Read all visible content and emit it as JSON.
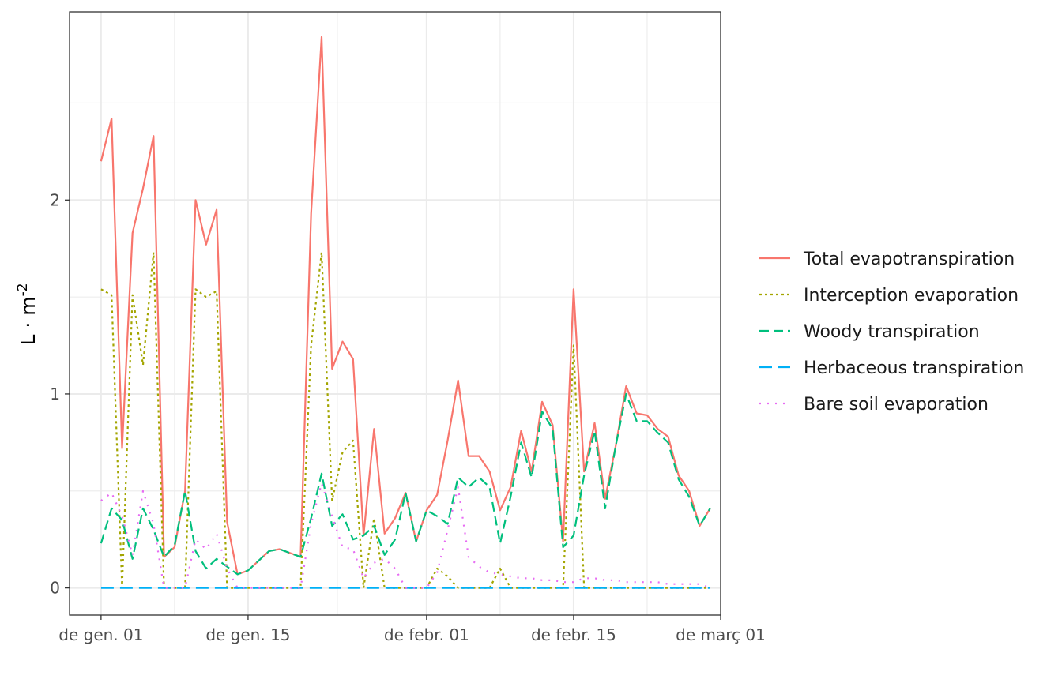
{
  "chart_data": {
    "type": "line",
    "title": "",
    "xlabel": "",
    "ylabel": "L · m",
    "ylabel_superscript": "-2",
    "x_start": "2021-01-01",
    "x_ticks": [
      "de gen. 01",
      "de gen. 15",
      "de febr. 01",
      "de febr. 15",
      "de març 01"
    ],
    "x_tick_dates": [
      "2021-01-01",
      "2021-01-15",
      "2021-02-01",
      "2021-02-15",
      "2021-03-01"
    ],
    "xlim": [
      "2020-12-29",
      "2021-03-01"
    ],
    "y_ticks": [
      "0",
      "1",
      "2"
    ],
    "ylim": [
      -0.14,
      2.97
    ],
    "grid": true,
    "legend_position": "right",
    "series": [
      {
        "name": "Total evapotranspiration",
        "color": "#F8766D",
        "dash": "solid",
        "values": [
          2.2,
          2.42,
          0.72,
          1.83,
          2.06,
          2.33,
          0.16,
          0.21,
          0.5,
          2.0,
          1.77,
          1.95,
          0.34,
          0.07,
          0.09,
          0.14,
          0.19,
          0.2,
          0.18,
          0.16,
          1.93,
          2.84,
          1.13,
          1.27,
          1.18,
          0.27,
          0.82,
          0.28,
          0.36,
          0.49,
          0.24,
          0.4,
          0.48,
          0.76,
          1.07,
          0.68,
          0.68,
          0.6,
          0.4,
          0.52,
          0.81,
          0.6,
          0.96,
          0.84,
          0.24,
          1.54,
          0.6,
          0.85,
          0.46,
          0.73,
          1.04,
          0.9,
          0.89,
          0.82,
          0.78,
          0.58,
          0.5,
          0.32,
          0.41
        ]
      },
      {
        "name": "Interception evaporation",
        "color": "#A3A500",
        "dash": "3,4",
        "values": [
          1.54,
          1.51,
          0.0,
          1.51,
          1.15,
          1.73,
          0.0,
          0.0,
          0.0,
          1.54,
          1.5,
          1.53,
          0.0,
          0.0,
          0.0,
          0.0,
          0.0,
          0.0,
          0.0,
          0.0,
          1.25,
          1.73,
          0.45,
          0.7,
          0.76,
          0.0,
          0.36,
          0.0,
          0.0,
          0.0,
          0.0,
          0.0,
          0.1,
          0.06,
          0.0,
          0.0,
          0.0,
          0.0,
          0.1,
          0.0,
          0.0,
          0.0,
          0.0,
          0.0,
          0.0,
          1.25,
          0.0,
          0.0,
          0.0,
          0.0,
          0.0,
          0.0,
          0.0,
          0.0,
          0.0,
          0.0,
          0.0,
          0.0,
          0.0
        ]
      },
      {
        "name": "Woody transpiration",
        "color": "#00BF7D",
        "dash": "12,6",
        "values": [
          0.23,
          0.41,
          0.35,
          0.15,
          0.41,
          0.3,
          0.16,
          0.22,
          0.5,
          0.19,
          0.1,
          0.15,
          0.11,
          0.07,
          0.09,
          0.14,
          0.19,
          0.2,
          0.18,
          0.16,
          0.36,
          0.59,
          0.32,
          0.38,
          0.25,
          0.27,
          0.32,
          0.17,
          0.25,
          0.49,
          0.24,
          0.4,
          0.37,
          0.33,
          0.57,
          0.52,
          0.57,
          0.52,
          0.23,
          0.47,
          0.75,
          0.57,
          0.91,
          0.82,
          0.21,
          0.27,
          0.58,
          0.81,
          0.41,
          0.73,
          1.0,
          0.86,
          0.86,
          0.8,
          0.75,
          0.56,
          0.47,
          0.32,
          0.41
        ]
      },
      {
        "name": "Herbaceous transpiration",
        "color": "#00B0F6",
        "dash": "16,8",
        "values": [
          0,
          0,
          0,
          0,
          0,
          0,
          0,
          0,
          0,
          0,
          0,
          0,
          0,
          0,
          0,
          0,
          0,
          0,
          0,
          0,
          0,
          0,
          0,
          0,
          0,
          0,
          0,
          0,
          0,
          0,
          0,
          0,
          0,
          0,
          0,
          0,
          0,
          0,
          0,
          0,
          0,
          0,
          0,
          0,
          0,
          0,
          0,
          0,
          0,
          0,
          0,
          0,
          0,
          0,
          0,
          0,
          0,
          0,
          0
        ]
      },
      {
        "name": "Bare soil evaporation",
        "color": "#E76BF3",
        "dash": "2,8",
        "values": [
          0.45,
          0.49,
          0.37,
          0.17,
          0.5,
          0.33,
          0.0,
          0.0,
          0.0,
          0.25,
          0.2,
          0.28,
          0.1,
          0.0,
          0.0,
          0.0,
          0.0,
          0.0,
          0.0,
          0.0,
          0.33,
          0.54,
          0.37,
          0.21,
          0.2,
          0.05,
          0.13,
          0.15,
          0.1,
          0.0,
          0.0,
          0.0,
          0.08,
          0.3,
          0.52,
          0.16,
          0.11,
          0.08,
          0.07,
          0.06,
          0.05,
          0.05,
          0.04,
          0.04,
          0.03,
          0.03,
          0.05,
          0.05,
          0.04,
          0.04,
          0.03,
          0.03,
          0.03,
          0.03,
          0.02,
          0.02,
          0.02,
          0.02,
          0.0
        ]
      }
    ]
  }
}
